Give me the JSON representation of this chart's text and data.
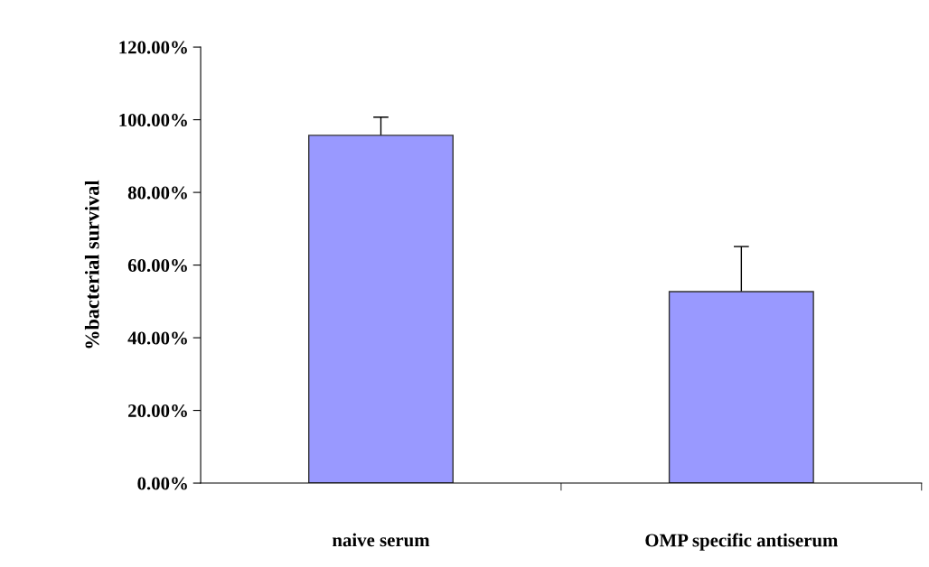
{
  "chart_data": {
    "type": "bar",
    "ylabel": "%bacterial survival",
    "categories": [
      "naive serum",
      "OMP specific antiserum"
    ],
    "values": [
      95.7,
      52.7
    ],
    "errors": [
      5,
      12.4
    ],
    "color": "#9999ff",
    "ylim": [
      0,
      120
    ],
    "yticks": [
      {
        "value": 0,
        "label": "0.00%"
      },
      {
        "value": 20,
        "label": "20.00%"
      },
      {
        "value": 40,
        "label": "40.00%"
      },
      {
        "value": 60,
        "label": "60.00%"
      },
      {
        "value": 80,
        "label": "80.00%"
      },
      {
        "value": 100,
        "label": "100.00%"
      },
      {
        "value": 120,
        "label": "120.00%"
      }
    ],
    "grid": false,
    "legend": false
  }
}
